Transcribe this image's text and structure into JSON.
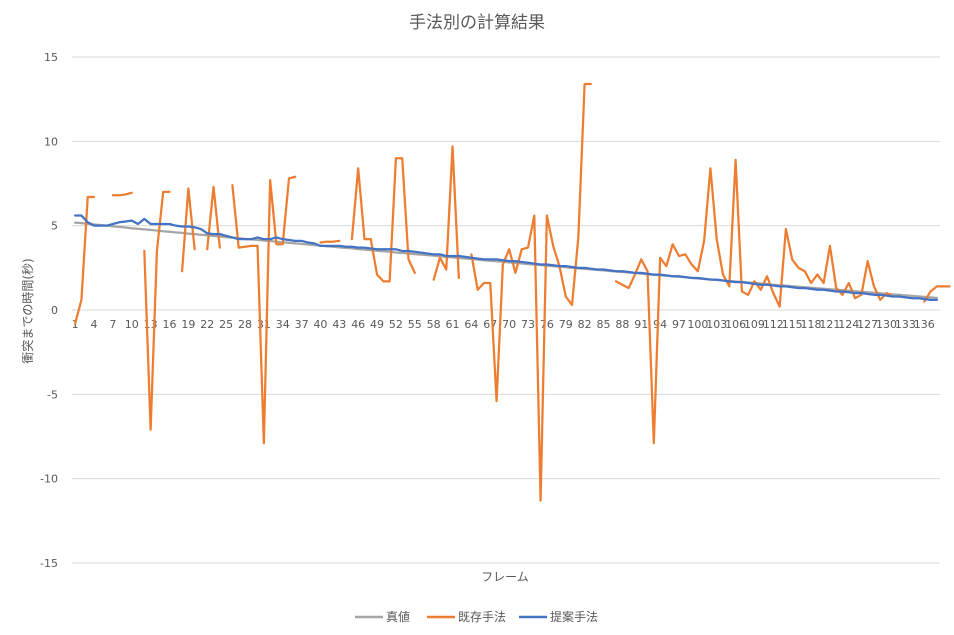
{
  "chart_data": {
    "type": "line",
    "title": "手法別の計算結果",
    "xlabel": "フレーム",
    "ylabel": "衝突までの時間(秒)",
    "ylim": [
      -15,
      15
    ],
    "yticks": [
      15,
      10,
      5,
      0,
      -5,
      -10,
      -15
    ],
    "x_count": 138,
    "x_tick_labels": [
      "1",
      "4",
      "7",
      "10",
      "13",
      "16",
      "19",
      "22",
      "25",
      "28",
      "31",
      "34",
      "37",
      "40",
      "43",
      "46",
      "49",
      "52",
      "55",
      "58",
      "61",
      "64",
      "67",
      "70",
      "73",
      "76",
      "79",
      "82",
      "85",
      "88",
      "91",
      "94",
      "97",
      "100",
      "103",
      "106",
      "109",
      "112",
      "115",
      "118",
      "121",
      "124",
      "127",
      "130",
      "133",
      "136"
    ],
    "grid": true,
    "legend_position": "bottom",
    "colors": {
      "true": "#A5A5A5",
      "existing": "#ED7D31",
      "proposed": "#4472C4"
    },
    "series": [
      {
        "name": "真値",
        "values": [
          5.18,
          5.15,
          5.11,
          5.07,
          5.04,
          5.0,
          4.96,
          4.93,
          4.89,
          4.85,
          4.82,
          4.78,
          4.75,
          4.71,
          4.67,
          4.64,
          4.6,
          4.57,
          4.53,
          4.5,
          4.46,
          4.43,
          4.39,
          4.36,
          4.32,
          4.29,
          4.26,
          4.22,
          4.19,
          4.15,
          4.12,
          4.09,
          4.05,
          4.02,
          3.98,
          3.95,
          3.92,
          3.88,
          3.85,
          3.81,
          3.78,
          3.75,
          3.71,
          3.68,
          3.65,
          3.61,
          3.58,
          3.55,
          3.51,
          3.48,
          3.45,
          3.41,
          3.38,
          3.35,
          3.31,
          3.28,
          3.25,
          3.22,
          3.18,
          3.15,
          3.12,
          3.08,
          3.05,
          3.02,
          2.99,
          2.95,
          2.92,
          2.89,
          2.86,
          2.82,
          2.79,
          2.76,
          2.73,
          2.7,
          2.66,
          2.63,
          2.6,
          2.57,
          2.54,
          2.5,
          2.47,
          2.44,
          2.41,
          2.38,
          2.35,
          2.31,
          2.28,
          2.25,
          2.22,
          2.19,
          2.16,
          2.12,
          2.09,
          2.06,
          2.03,
          2.0,
          1.97,
          1.94,
          1.91,
          1.87,
          1.84,
          1.81,
          1.78,
          1.75,
          1.72,
          1.69,
          1.66,
          1.63,
          1.6,
          1.57,
          1.54,
          1.5,
          1.47,
          1.44,
          1.41,
          1.38,
          1.35,
          1.32,
          1.29,
          1.26,
          1.23,
          1.2,
          1.17,
          1.14,
          1.11,
          1.08,
          1.05,
          1.02,
          0.99,
          0.96,
          0.93,
          0.9,
          0.87,
          0.84,
          0.81,
          0.78,
          0.75,
          0.72
        ]
      },
      {
        "name": "既存手法",
        "values": [
          -0.8,
          0.6,
          6.7,
          6.7,
          null,
          null,
          6.8,
          6.8,
          6.85,
          6.95,
          null,
          3.5,
          -7.1,
          3.5,
          7.0,
          7.0,
          null,
          2.3,
          7.2,
          3.6,
          null,
          3.6,
          7.3,
          3.7,
          null,
          7.4,
          3.7,
          3.75,
          3.8,
          3.8,
          -7.9,
          7.7,
          3.9,
          3.9,
          7.8,
          7.9,
          null,
          null,
          null,
          4.0,
          4.05,
          4.05,
          4.1,
          null,
          4.2,
          8.4,
          4.2,
          4.2,
          2.1,
          1.7,
          1.7,
          9.0,
          9.0,
          3.0,
          2.2,
          null,
          null,
          1.8,
          3.1,
          2.4,
          9.7,
          1.9,
          null,
          3.3,
          1.2,
          1.6,
          1.6,
          -5.4,
          2.7,
          3.6,
          2.2,
          3.6,
          3.7,
          5.6,
          -11.3,
          5.6,
          3.8,
          2.6,
          0.8,
          0.3,
          4.3,
          13.4,
          13.4,
          null,
          null,
          null,
          1.7,
          1.5,
          1.3,
          2.1,
          3.0,
          2.3,
          -7.9,
          3.1,
          2.6,
          3.9,
          3.2,
          3.3,
          2.7,
          2.3,
          4.1,
          8.4,
          4.2,
          2.1,
          1.4,
          8.9,
          1.1,
          0.9,
          1.7,
          1.2,
          2.0,
          1.0,
          0.2,
          4.8,
          3.0,
          2.5,
          2.3,
          1.6,
          2.1,
          1.6,
          3.8,
          1.3,
          0.9,
          1.6,
          0.7,
          0.9,
          2.9,
          1.4,
          0.6,
          1.0,
          0.8,
          null,
          null,
          null,
          null,
          0.5,
          1.1,
          1.4,
          1.4,
          1.4
        ]
      },
      {
        "name": "提案手法",
        "values": [
          5.6,
          5.6,
          5.2,
          5.0,
          5.0,
          5.0,
          5.1,
          5.2,
          5.25,
          5.3,
          5.1,
          5.4,
          5.1,
          5.1,
          5.1,
          5.1,
          5.0,
          4.95,
          4.95,
          4.9,
          4.8,
          4.55,
          4.5,
          4.5,
          4.4,
          4.3,
          4.2,
          4.2,
          4.2,
          4.3,
          4.2,
          4.2,
          4.3,
          4.2,
          4.15,
          4.1,
          4.1,
          4.0,
          3.95,
          3.8,
          3.8,
          3.8,
          3.8,
          3.75,
          3.75,
          3.7,
          3.7,
          3.65,
          3.6,
          3.6,
          3.6,
          3.6,
          3.5,
          3.5,
          3.45,
          3.4,
          3.35,
          3.3,
          3.3,
          3.2,
          3.2,
          3.2,
          3.15,
          3.1,
          3.05,
          3.0,
          3.0,
          3.0,
          2.95,
          2.9,
          2.9,
          2.85,
          2.8,
          2.75,
          2.7,
          2.7,
          2.65,
          2.6,
          2.6,
          2.55,
          2.5,
          2.5,
          2.45,
          2.4,
          2.4,
          2.35,
          2.3,
          2.3,
          2.25,
          2.2,
          2.2,
          2.15,
          2.1,
          2.1,
          2.05,
          2.0,
          2.0,
          1.95,
          1.9,
          1.9,
          1.85,
          1.8,
          1.8,
          1.75,
          1.7,
          1.65,
          1.65,
          1.6,
          1.55,
          1.5,
          1.5,
          1.45,
          1.4,
          1.4,
          1.35,
          1.3,
          1.3,
          1.25,
          1.2,
          1.2,
          1.15,
          1.1,
          1.1,
          1.05,
          1.0,
          1.0,
          0.95,
          0.9,
          0.9,
          0.85,
          0.8,
          0.8,
          0.75,
          0.7,
          0.7,
          0.65,
          0.6,
          0.6
        ]
      }
    ]
  }
}
